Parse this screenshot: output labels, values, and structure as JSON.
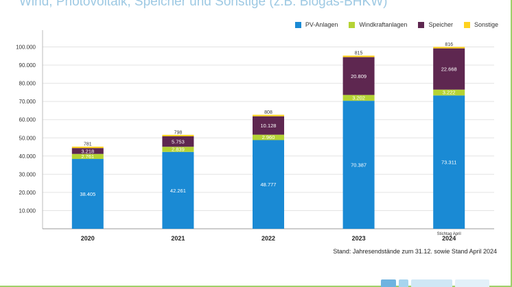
{
  "title": "Wind, Photovoltaik, Speicher und Sonstige (z.B. Biogas-BHKW)",
  "caption": "Stand: Jahresendstände zum 31.12. sowie Stand April 2024",
  "colors": {
    "pv": "#1a8ad4",
    "wind": "#b5d334",
    "speicher": "#5e2750",
    "sonstige": "#ffd21f",
    "grid": "#e3e3e3",
    "axis": "#bbbbbb",
    "title": "#9ec9e3",
    "border": "#9fd06a"
  },
  "chart_data": {
    "type": "bar",
    "stacked": true,
    "categories": [
      "2020",
      "2021",
      "2022",
      "2023",
      "2024"
    ],
    "category_notes": [
      "",
      "",
      "",
      "",
      "Stichtag April"
    ],
    "series": [
      {
        "name": "PV-Anlagen",
        "values": [
          38405,
          42261,
          48777,
          70387,
          73311
        ]
      },
      {
        "name": "Windkraftanlagen",
        "values": [
          2761,
          2839,
          2960,
          3202,
          3222
        ]
      },
      {
        "name": "Speicher",
        "values": [
          3218,
          5753,
          10128,
          20809,
          22668
        ]
      },
      {
        "name": "Sonstige",
        "values": [
          781,
          798,
          808,
          815,
          816
        ]
      }
    ],
    "value_labels": [
      [
        "38.405",
        "42.261",
        "48.777",
        "70.387",
        "73.311"
      ],
      [
        "2.761",
        "2.839",
        "2.960",
        "3.202",
        "3.222"
      ],
      [
        "3.218",
        "5.753",
        "10.128",
        "20.809",
        "22.668"
      ],
      [
        "781",
        "798",
        "808",
        "815",
        "816"
      ]
    ],
    "yticks": [
      "10.000",
      "20.000",
      "30.000",
      "40.000",
      "50.000",
      "60.000",
      "70.000",
      "80.000",
      "90.000",
      "100.000"
    ],
    "ylim": [
      0,
      110000
    ],
    "grid": true,
    "legend_position": "top-right"
  }
}
